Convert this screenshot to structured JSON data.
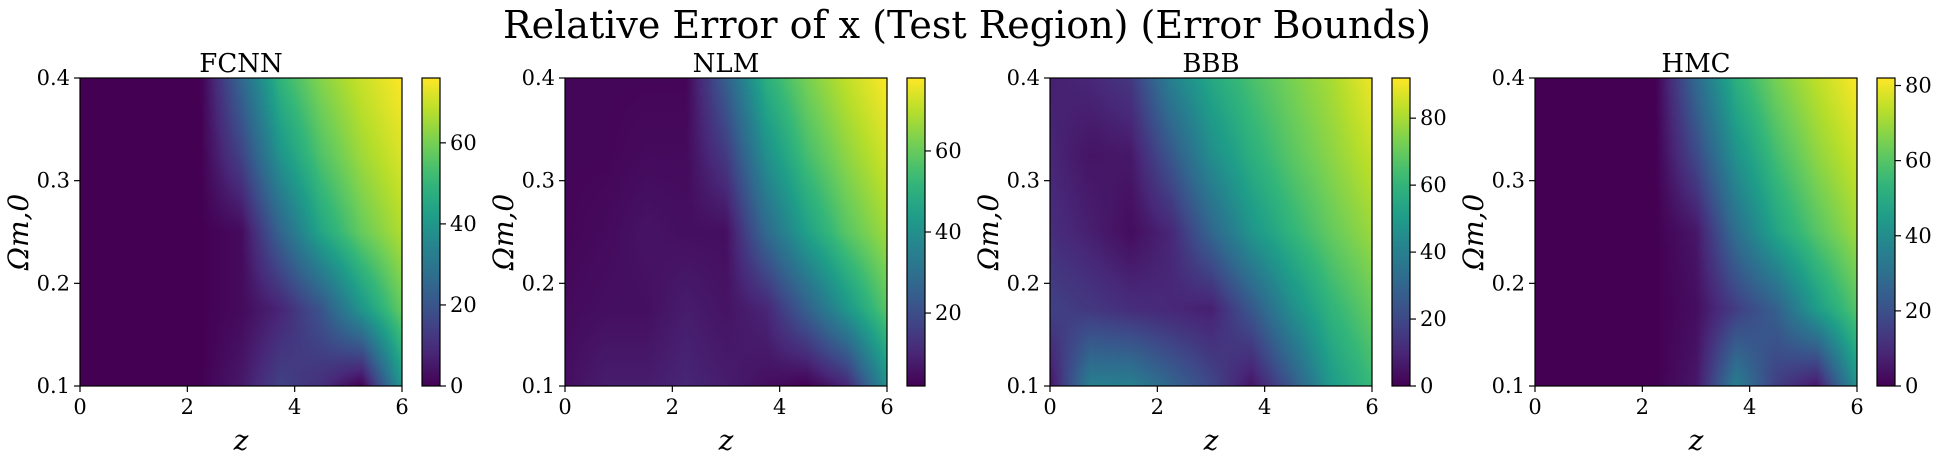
{
  "figure": {
    "title": "Relative Error of x (Test Region) (Error Bounds)"
  },
  "chart_data": [
    {
      "type": "heatmap",
      "title": "FCNN",
      "xlabel": "z",
      "ylabel": "Ωm,0",
      "xlim": [
        0,
        6
      ],
      "ylim": [
        0.1,
        0.4
      ],
      "xticks": [
        0,
        2,
        4,
        6
      ],
      "yticks": [
        0.1,
        0.2,
        0.3,
        0.4
      ],
      "colormap": "viridis",
      "colorbar": {
        "min": 0,
        "max": 76,
        "ticks": [
          0,
          20,
          40,
          60
        ]
      },
      "x": [
        0,
        0.75,
        1.5,
        2.25,
        3,
        3.75,
        4.5,
        5.25,
        6
      ],
      "y": [
        0.1,
        0.175,
        0.25,
        0.325,
        0.4
      ],
      "z": [
        [
          0,
          0,
          0,
          0,
          5,
          15,
          10,
          0,
          40
        ],
        [
          0,
          0,
          0,
          0,
          2,
          8,
          20,
          40,
          58
        ],
        [
          0,
          0,
          0,
          0,
          2,
          25,
          45,
          58,
          67
        ],
        [
          0,
          0,
          0,
          0,
          15,
          40,
          55,
          65,
          72
        ],
        [
          0,
          0,
          0,
          0,
          25,
          50,
          62,
          70,
          76
        ]
      ]
    },
    {
      "type": "heatmap",
      "title": "NLM",
      "xlabel": "z",
      "ylabel": "Ωm,0",
      "xlim": [
        0,
        6
      ],
      "ylim": [
        0.1,
        0.4
      ],
      "xticks": [
        0,
        2,
        4,
        6
      ],
      "yticks": [
        0.1,
        0.2,
        0.3,
        0.4
      ],
      "colormap": "viridis",
      "colorbar": {
        "min": 2,
        "max": 78,
        "ticks": [
          20,
          40,
          60
        ]
      },
      "x": [
        0,
        0.75,
        1.5,
        2.25,
        3,
        3.75,
        4.5,
        5.25,
        6
      ],
      "y": [
        0.1,
        0.175,
        0.25,
        0.325,
        0.4
      ],
      "z": [
        [
          5,
          8,
          8,
          10,
          8,
          5,
          2,
          10,
          40
        ],
        [
          4,
          5,
          5,
          8,
          6,
          10,
          25,
          42,
          58
        ],
        [
          3,
          4,
          6,
          5,
          5,
          28,
          45,
          58,
          67
        ],
        [
          3,
          3,
          4,
          4,
          15,
          40,
          55,
          65,
          73
        ],
        [
          3,
          3,
          3,
          3,
          25,
          50,
          62,
          71,
          78
        ]
      ]
    },
    {
      "type": "heatmap",
      "title": "BBB",
      "xlabel": "z",
      "ylabel": "Ωm,0",
      "xlim": [
        0,
        6
      ],
      "ylim": [
        0.1,
        0.4
      ],
      "xticks": [
        0,
        2,
        4,
        6
      ],
      "yticks": [
        0.1,
        0.2,
        0.3,
        0.4
      ],
      "colormap": "viridis",
      "colorbar": {
        "min": 0,
        "max": 92,
        "ticks": [
          0,
          20,
          40,
          60,
          80
        ]
      },
      "x": [
        0,
        0.75,
        1.5,
        2.25,
        3,
        3.75,
        4.5,
        5.25,
        6
      ],
      "y": [
        0.1,
        0.175,
        0.25,
        0.325,
        0.4
      ],
      "z": [
        [
          5,
          40,
          40,
          30,
          20,
          5,
          25,
          50,
          62
        ],
        [
          18,
          15,
          12,
          10,
          8,
          25,
          45,
          60,
          70
        ],
        [
          12,
          8,
          3,
          10,
          30,
          48,
          60,
          70,
          78
        ],
        [
          10,
          5,
          6,
          25,
          45,
          58,
          68,
          76,
          84
        ],
        [
          8,
          10,
          15,
          40,
          55,
          65,
          73,
          80,
          90
        ]
      ]
    },
    {
      "type": "heatmap",
      "title": "HMC",
      "xlabel": "z",
      "ylabel": "Ωm,0",
      "xlim": [
        0,
        6
      ],
      "ylim": [
        0.1,
        0.4
      ],
      "xticks": [
        0,
        2,
        4,
        6
      ],
      "yticks": [
        0.1,
        0.2,
        0.3,
        0.4
      ],
      "colormap": "viridis",
      "colorbar": {
        "min": 0,
        "max": 82,
        "ticks": [
          0,
          20,
          40,
          60,
          80
        ]
      },
      "x": [
        0,
        0.75,
        1.5,
        2.25,
        3,
        3.75,
        4.5,
        5.25,
        6
      ],
      "y": [
        0.1,
        0.175,
        0.25,
        0.325,
        0.4
      ],
      "z": [
        [
          0,
          0,
          0,
          0,
          5,
          35,
          15,
          5,
          42
        ],
        [
          0,
          0,
          0,
          0,
          3,
          15,
          25,
          45,
          60
        ],
        [
          0,
          0,
          0,
          0,
          5,
          30,
          48,
          60,
          70
        ],
        [
          0,
          0,
          0,
          0,
          18,
          42,
          57,
          68,
          76
        ],
        [
          0,
          0,
          0,
          0,
          28,
          52,
          65,
          74,
          82
        ]
      ]
    }
  ]
}
